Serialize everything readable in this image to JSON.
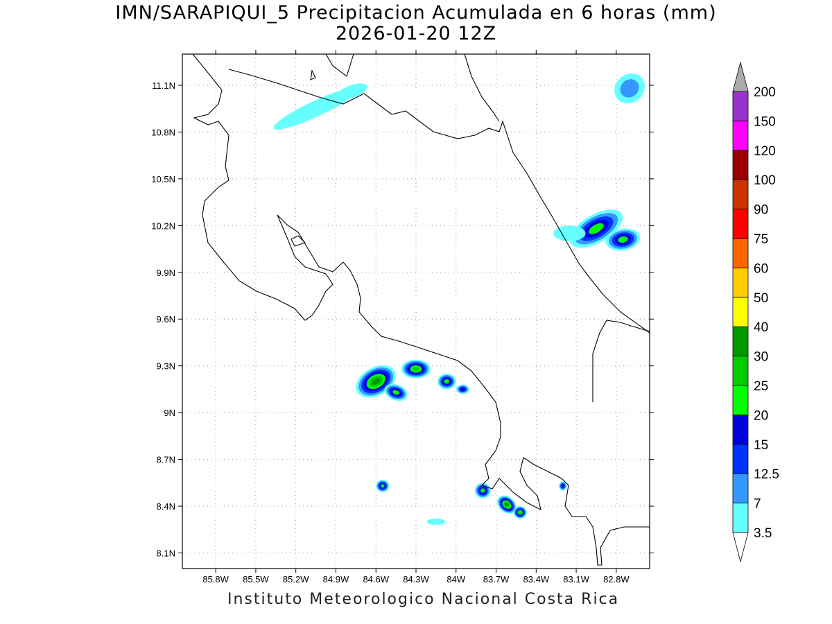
{
  "title": {
    "line1": "IMN/SARAPIQUI_5 Precipitacion Acumulada en 6 horas (mm)",
    "line2": "2026-01-20 12Z"
  },
  "footer": "Instituto Meteorologico Nacional Costa Rica",
  "axes": {
    "lon_labels": [
      "85.8W",
      "85.5W",
      "85.2W",
      "84.9W",
      "84.6W",
      "84.3W",
      "84W",
      "83.7W",
      "83.4W",
      "83.1W",
      "82.8W"
    ],
    "lon_values": [
      -85.8,
      -85.5,
      -85.2,
      -84.9,
      -84.6,
      -84.3,
      -84.0,
      -83.7,
      -83.4,
      -83.1,
      -82.8
    ],
    "lat_labels": [
      "11.1N",
      "10.8N",
      "10.5N",
      "10.2N",
      "9.9N",
      "9.6N",
      "9.3N",
      "9N",
      "8.7N",
      "8.4N",
      "8.1N"
    ],
    "lat_values": [
      11.1,
      10.8,
      10.5,
      10.2,
      9.9,
      9.6,
      9.3,
      9.0,
      8.7,
      8.4,
      8.1
    ],
    "lon_range": [
      -86.05,
      -82.55
    ],
    "lat_range": [
      8.0,
      11.3
    ],
    "grid": "dotted"
  },
  "colorbar": {
    "levels": [
      "3.5",
      "7",
      "12.5",
      "15",
      "20",
      "25",
      "30",
      "40",
      "50",
      "60",
      "75",
      "90",
      "100",
      "120",
      "150",
      "200"
    ],
    "colors": [
      "#66ffff",
      "#3399ff",
      "#0033ff",
      "#0000dd",
      "#00ff00",
      "#00cc00",
      "#009900",
      "#ffff00",
      "#ffcc00",
      "#ff6600",
      "#ff0000",
      "#cc3300",
      "#990000",
      "#ff00ff",
      "#9933cc",
      "#f2f2f2",
      "#aaaaaa"
    ]
  },
  "precip_cells": [
    {
      "name": "cell-north-pacific",
      "lon": -85.05,
      "lat": 10.95,
      "rx": 0.35,
      "ry": 0.05,
      "rot": -25,
      "level": 0
    },
    {
      "name": "cell-north-gulf",
      "lon": -84.78,
      "lat": 11.06,
      "rx": 0.12,
      "ry": 0.04,
      "rot": -20,
      "level": 0
    },
    {
      "name": "cell-caribe-ne",
      "lon": -82.7,
      "lat": 11.08,
      "rx": 0.12,
      "ry": 0.09,
      "rot": -40,
      "level": 1
    },
    {
      "name": "cell-limon-1",
      "lon": -82.95,
      "lat": 10.18,
      "rx": 0.22,
      "ry": 0.09,
      "rot": -30,
      "level": 4
    },
    {
      "name": "cell-limon-2",
      "lon": -82.75,
      "lat": 10.11,
      "rx": 0.13,
      "ry": 0.07,
      "rot": -10,
      "level": 4
    },
    {
      "name": "cell-limon-east",
      "lon": -83.15,
      "lat": 10.15,
      "rx": 0.12,
      "ry": 0.05,
      "rot": 0,
      "level": 0
    },
    {
      "name": "cell-central-west",
      "lon": -84.6,
      "lat": 9.2,
      "rx": 0.16,
      "ry": 0.09,
      "rot": -30,
      "level": 6
    },
    {
      "name": "cell-central-mid",
      "lon": -84.3,
      "lat": 9.28,
      "rx": 0.11,
      "ry": 0.06,
      "rot": 0,
      "level": 5
    },
    {
      "name": "cell-central-south",
      "lon": -84.45,
      "lat": 9.13,
      "rx": 0.09,
      "ry": 0.05,
      "rot": 20,
      "level": 4
    },
    {
      "name": "cell-central-east",
      "lon": -84.07,
      "lat": 9.2,
      "rx": 0.07,
      "ry": 0.05,
      "rot": 0,
      "level": 4
    },
    {
      "name": "cell-central-far-east",
      "lon": -83.95,
      "lat": 9.15,
      "rx": 0.05,
      "ry": 0.03,
      "rot": 0,
      "level": 3
    },
    {
      "name": "cell-osa-west",
      "lon": -84.55,
      "lat": 8.53,
      "rx": 0.05,
      "ry": 0.04,
      "rot": 0,
      "level": 4
    },
    {
      "name": "cell-sur-1",
      "lon": -83.8,
      "lat": 8.5,
      "rx": 0.06,
      "ry": 0.05,
      "rot": 0,
      "level": 4
    },
    {
      "name": "cell-sur-2",
      "lon": -83.62,
      "lat": 8.41,
      "rx": 0.08,
      "ry": 0.05,
      "rot": 40,
      "level": 6
    },
    {
      "name": "cell-sur-3",
      "lon": -83.52,
      "lat": 8.36,
      "rx": 0.05,
      "ry": 0.04,
      "rot": 0,
      "level": 5
    },
    {
      "name": "cell-sur-small",
      "lon": -84.15,
      "lat": 8.3,
      "rx": 0.07,
      "ry": 0.02,
      "rot": 0,
      "level": 0
    },
    {
      "name": "cell-sur-east",
      "lon": -83.2,
      "lat": 8.53,
      "rx": 0.03,
      "ry": 0.03,
      "rot": 0,
      "level": 3
    }
  ]
}
